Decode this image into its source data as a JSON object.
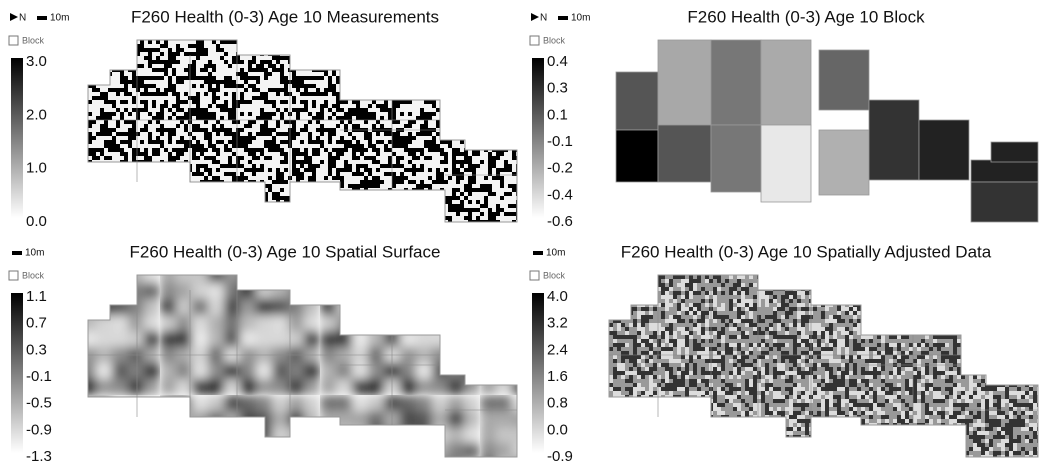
{
  "panels": [
    {
      "title": "F260 Health (0-3) Age 10 Measurements",
      "north": "N",
      "scale": "10m",
      "legend": "Block",
      "colorbar": [
        "3.0",
        "2.0",
        "1.0",
        "0.0"
      ]
    },
    {
      "title": "F260 Health (0-3) Age 10 Block",
      "north": "N",
      "scale": "10m",
      "legend": "Block",
      "colorbar": [
        "0.4",
        "0.3",
        "0.1",
        "-0.1",
        "-0.2",
        "-0.4",
        "-0.6"
      ]
    },
    {
      "title": "F260 Health (0-3) Age 10 Spatial Surface",
      "scale": "10m",
      "legend": "Block",
      "colorbar": [
        "1.1",
        "0.7",
        "0.3",
        "-0.1",
        "-0.5",
        "-0.9",
        "-1.3"
      ]
    },
    {
      "title": "F260 Health (0-3) Age 10 Spatially Adjusted Data",
      "scale": "10m",
      "legend": "Block",
      "colorbar": [
        "4.0",
        "3.2",
        "2.4",
        "1.6",
        "0.8",
        "0.0",
        "-0.9"
      ]
    }
  ]
}
